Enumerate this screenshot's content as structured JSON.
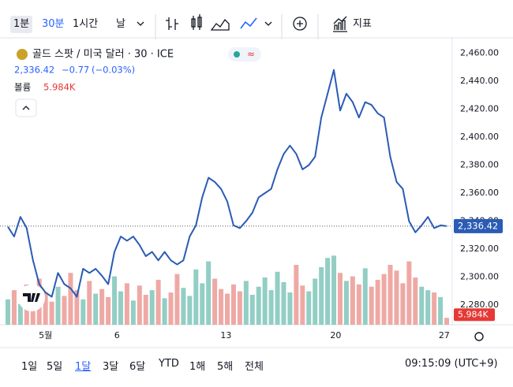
{
  "toolbar": {
    "intervals": [
      "1분",
      "30분",
      "1시간",
      "날"
    ],
    "indicators": "지표"
  },
  "legend": {
    "symbol": "골드 스팟 / 미국 달러 · 30 · ICE",
    "price": "2,336.42",
    "change": "−0.77",
    "change_pct": "(−0.03%)",
    "volume_label": "볼륨",
    "volume_value": "5.984K"
  },
  "chart_data": {
    "type": "line",
    "color": "#2a5bb5",
    "values": [
      2336,
      2329,
      2343,
      2335,
      2312,
      2295,
      2289,
      2286,
      2303,
      2295,
      2292,
      2286,
      2306,
      2303,
      2306,
      2301,
      2295,
      2318,
      2329,
      2326,
      2329,
      2323,
      2315,
      2318,
      2312,
      2318,
      2312,
      2309,
      2312,
      2329,
      2337,
      2357,
      2371,
      2368,
      2363,
      2354,
      2337,
      2335,
      2340,
      2346,
      2357,
      2360,
      2363,
      2377,
      2388,
      2394,
      2388,
      2377,
      2380,
      2386,
      2414,
      2431,
      2448,
      2419,
      2431,
      2425,
      2414,
      2425,
      2423,
      2417,
      2414,
      2386,
      2368,
      2363,
      2340,
      2332,
      2337,
      2343,
      2335,
      2337,
      2336.42
    ],
    "xlim": [
      0,
      70
    ],
    "xticks": [
      {
        "value": 6,
        "label": "5월"
      },
      {
        "value": 17.4,
        "label": "6"
      },
      {
        "value": 34.8,
        "label": "13"
      },
      {
        "value": 52.3,
        "label": "20"
      },
      {
        "value": 69.6,
        "label": "27"
      }
    ],
    "ylim": [
      2266,
      2467
    ],
    "yticks": [
      {
        "value": 2280,
        "label": "2,280.00"
      },
      {
        "value": 2300,
        "label": "2,300.00"
      },
      {
        "value": 2320,
        "label": "2,320.00"
      },
      {
        "value": 2340,
        "label": "2,340.00"
      },
      {
        "value": 2360,
        "label": "2,360.00"
      },
      {
        "value": 2380,
        "label": "2,380.00"
      },
      {
        "value": 2400,
        "label": "2,400.00"
      },
      {
        "value": 2420,
        "label": "2,420.00"
      },
      {
        "value": 2440,
        "label": "2,440.00"
      },
      {
        "value": 2460,
        "label": "2,460.00"
      }
    ],
    "volume": {
      "values": [
        22,
        30,
        18,
        35,
        26,
        40,
        28,
        20,
        33,
        25,
        45,
        30,
        22,
        38,
        27,
        31,
        24,
        42,
        29,
        36,
        21,
        34,
        26,
        30,
        39,
        23,
        28,
        44,
        32,
        25,
        48,
        36,
        55,
        40,
        31,
        27,
        35,
        29,
        38,
        26,
        33,
        41,
        30,
        46,
        37,
        28,
        52,
        34,
        29,
        40,
        50,
        58,
        60,
        45,
        38,
        42,
        35,
        49,
        33,
        39,
        44,
        52,
        47,
        36,
        55,
        41,
        33,
        30,
        28,
        24,
        5.984
      ],
      "ylim": [
        0,
        65
      ],
      "color_up": "#7fc6ba",
      "color_down": "#eb9a95"
    }
  },
  "ranges": [
    "1일",
    "5일",
    "1달",
    "3달",
    "6달",
    "YTD",
    "1해",
    "5해",
    "전체"
  ],
  "clock": "09:15:09 (UTC+9)"
}
